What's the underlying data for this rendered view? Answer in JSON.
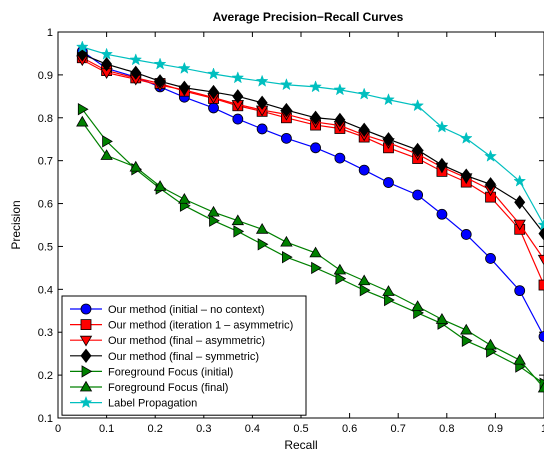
{
  "chart_data": {
    "type": "line",
    "title": "Average Precision−Recall Curves",
    "xlabel": "Recall",
    "ylabel": "Precision",
    "xlim": [
      0,
      1
    ],
    "ylim": [
      0.1,
      1
    ],
    "xticks": [
      0,
      0.1,
      0.2,
      0.3,
      0.4,
      0.5,
      0.6,
      0.7,
      0.8,
      0.9,
      1
    ],
    "yticks": [
      0.1,
      0.2,
      0.3,
      0.4,
      0.5,
      0.6,
      0.7,
      0.8,
      0.9,
      1
    ],
    "xtick_labels": [
      "0",
      "0.1",
      "0.2",
      "0.3",
      "0.4",
      "0.5",
      "0.6",
      "0.7",
      "0.8",
      "0.9",
      "1"
    ],
    "ytick_labels": [
      "0.1",
      "0.2",
      "0.3",
      "0.4",
      "0.5",
      "0.6",
      "0.7",
      "0.8",
      "0.9",
      "1"
    ],
    "grid": false,
    "legend_position": "bottom-left",
    "series": [
      {
        "name": "Our method (initial – no context)",
        "color": "#0000ff",
        "marker": "circle",
        "points": [
          [
            0.05,
            0.955
          ],
          [
            0.1,
            0.915
          ],
          [
            0.16,
            0.895
          ],
          [
            0.21,
            0.872
          ],
          [
            0.26,
            0.848
          ],
          [
            0.32,
            0.823
          ],
          [
            0.37,
            0.797
          ],
          [
            0.42,
            0.774
          ],
          [
            0.47,
            0.752
          ],
          [
            0.53,
            0.73
          ],
          [
            0.58,
            0.706
          ],
          [
            0.63,
            0.678
          ],
          [
            0.68,
            0.649
          ],
          [
            0.74,
            0.62
          ],
          [
            0.79,
            0.575
          ],
          [
            0.84,
            0.528
          ],
          [
            0.89,
            0.472
          ],
          [
            0.95,
            0.397
          ],
          [
            1.0,
            0.29
          ]
        ]
      },
      {
        "name": "Our method (iteration 1 – asymmetric)",
        "color": "#ff0000",
        "marker": "square",
        "points": [
          [
            0.05,
            0.94
          ],
          [
            0.1,
            0.91
          ],
          [
            0.16,
            0.893
          ],
          [
            0.21,
            0.88
          ],
          [
            0.26,
            0.862
          ],
          [
            0.32,
            0.845
          ],
          [
            0.37,
            0.828
          ],
          [
            0.42,
            0.815
          ],
          [
            0.47,
            0.8
          ],
          [
            0.53,
            0.783
          ],
          [
            0.58,
            0.775
          ],
          [
            0.63,
            0.755
          ],
          [
            0.68,
            0.73
          ],
          [
            0.74,
            0.705
          ],
          [
            0.79,
            0.675
          ],
          [
            0.84,
            0.65
          ],
          [
            0.89,
            0.615
          ],
          [
            0.95,
            0.54
          ],
          [
            1.0,
            0.41
          ]
        ]
      },
      {
        "name": "Our method (final – asymmetric)",
        "color": "#ff0000",
        "marker": "triangle-down",
        "points": [
          [
            0.05,
            0.935
          ],
          [
            0.1,
            0.905
          ],
          [
            0.16,
            0.89
          ],
          [
            0.21,
            0.876
          ],
          [
            0.26,
            0.865
          ],
          [
            0.32,
            0.847
          ],
          [
            0.37,
            0.831
          ],
          [
            0.42,
            0.818
          ],
          [
            0.47,
            0.808
          ],
          [
            0.53,
            0.79
          ],
          [
            0.58,
            0.782
          ],
          [
            0.63,
            0.76
          ],
          [
            0.68,
            0.742
          ],
          [
            0.74,
            0.715
          ],
          [
            0.79,
            0.685
          ],
          [
            0.84,
            0.66
          ],
          [
            0.89,
            0.632
          ],
          [
            0.95,
            0.552
          ],
          [
            1.0,
            0.47
          ]
        ]
      },
      {
        "name": "Our method (final – symmetric)",
        "color": "#000000",
        "marker": "diamond",
        "points": [
          [
            0.05,
            0.948
          ],
          [
            0.1,
            0.925
          ],
          [
            0.16,
            0.905
          ],
          [
            0.21,
            0.885
          ],
          [
            0.26,
            0.87
          ],
          [
            0.32,
            0.86
          ],
          [
            0.37,
            0.85
          ],
          [
            0.42,
            0.835
          ],
          [
            0.47,
            0.818
          ],
          [
            0.53,
            0.8
          ],
          [
            0.58,
            0.795
          ],
          [
            0.63,
            0.772
          ],
          [
            0.68,
            0.75
          ],
          [
            0.74,
            0.725
          ],
          [
            0.79,
            0.69
          ],
          [
            0.84,
            0.665
          ],
          [
            0.89,
            0.645
          ],
          [
            0.95,
            0.603
          ],
          [
            1.0,
            0.53
          ]
        ]
      },
      {
        "name": "Foreground Focus (initial)",
        "color": "#008000",
        "marker": "triangle-right",
        "points": [
          [
            0.05,
            0.82
          ],
          [
            0.1,
            0.745
          ],
          [
            0.16,
            0.68
          ],
          [
            0.21,
            0.635
          ],
          [
            0.26,
            0.595
          ],
          [
            0.32,
            0.56
          ],
          [
            0.37,
            0.535
          ],
          [
            0.42,
            0.505
          ],
          [
            0.47,
            0.475
          ],
          [
            0.53,
            0.45
          ],
          [
            0.58,
            0.425
          ],
          [
            0.63,
            0.398
          ],
          [
            0.68,
            0.375
          ],
          [
            0.74,
            0.345
          ],
          [
            0.79,
            0.32
          ],
          [
            0.84,
            0.28
          ],
          [
            0.89,
            0.255
          ],
          [
            0.95,
            0.22
          ],
          [
            1.0,
            0.18
          ]
        ]
      },
      {
        "name": "Foreground Focus (final)",
        "color": "#008000",
        "marker": "triangle-up",
        "points": [
          [
            0.05,
            0.79
          ],
          [
            0.1,
            0.712
          ],
          [
            0.16,
            0.685
          ],
          [
            0.21,
            0.64
          ],
          [
            0.26,
            0.61
          ],
          [
            0.32,
            0.58
          ],
          [
            0.37,
            0.56
          ],
          [
            0.42,
            0.54
          ],
          [
            0.47,
            0.51
          ],
          [
            0.53,
            0.485
          ],
          [
            0.58,
            0.445
          ],
          [
            0.63,
            0.42
          ],
          [
            0.68,
            0.395
          ],
          [
            0.74,
            0.36
          ],
          [
            0.79,
            0.33
          ],
          [
            0.84,
            0.305
          ],
          [
            0.89,
            0.27
          ],
          [
            0.95,
            0.235
          ],
          [
            1.0,
            0.17
          ]
        ]
      },
      {
        "name": "Label Propagation",
        "color": "#00bfbf",
        "marker": "star",
        "points": [
          [
            0.05,
            0.965
          ],
          [
            0.1,
            0.948
          ],
          [
            0.16,
            0.935
          ],
          [
            0.21,
            0.925
          ],
          [
            0.26,
            0.915
          ],
          [
            0.32,
            0.902
          ],
          [
            0.37,
            0.893
          ],
          [
            0.42,
            0.885
          ],
          [
            0.47,
            0.877
          ],
          [
            0.53,
            0.872
          ],
          [
            0.58,
            0.865
          ],
          [
            0.63,
            0.855
          ],
          [
            0.68,
            0.842
          ],
          [
            0.74,
            0.828
          ],
          [
            0.79,
            0.778
          ],
          [
            0.84,
            0.752
          ],
          [
            0.89,
            0.71
          ],
          [
            0.95,
            0.652
          ],
          [
            1.0,
            0.55
          ]
        ]
      }
    ]
  }
}
